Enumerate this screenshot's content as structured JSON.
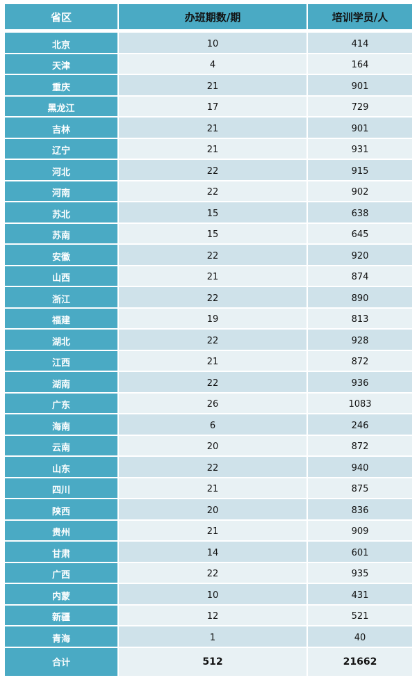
{
  "header": {
    "province": "省区",
    "sessions": "办班期数/期",
    "trainees": "培训学员/人"
  },
  "rows": [
    {
      "province": "北京",
      "sessions": "10",
      "trainees": "414"
    },
    {
      "province": "天津",
      "sessions": "4",
      "trainees": "164"
    },
    {
      "province": "重庆",
      "sessions": "21",
      "trainees": "901"
    },
    {
      "province": "黑龙江",
      "sessions": "17",
      "trainees": "729"
    },
    {
      "province": "吉林",
      "sessions": "21",
      "trainees": "901"
    },
    {
      "province": "辽宁",
      "sessions": "21",
      "trainees": "931"
    },
    {
      "province": "河北",
      "sessions": "22",
      "trainees": "915"
    },
    {
      "province": "河南",
      "sessions": "22",
      "trainees": "902"
    },
    {
      "province": "苏北",
      "sessions": "15",
      "trainees": "638"
    },
    {
      "province": "苏南",
      "sessions": "15",
      "trainees": "645"
    },
    {
      "province": "安徽",
      "sessions": "22",
      "trainees": "920"
    },
    {
      "province": "山西",
      "sessions": "21",
      "trainees": "874"
    },
    {
      "province": "浙江",
      "sessions": "22",
      "trainees": "890"
    },
    {
      "province": "福建",
      "sessions": "19",
      "trainees": "813"
    },
    {
      "province": "湖北",
      "sessions": "22",
      "trainees": "928"
    },
    {
      "province": "江西",
      "sessions": "21",
      "trainees": "872"
    },
    {
      "province": "湖南",
      "sessions": "22",
      "trainees": "936"
    },
    {
      "province": "广东",
      "sessions": "26",
      "trainees": "1083"
    },
    {
      "province": "海南",
      "sessions": "6",
      "trainees": "246"
    },
    {
      "province": "云南",
      "sessions": "20",
      "trainees": "872"
    },
    {
      "province": "山东",
      "sessions": "22",
      "trainees": "940"
    },
    {
      "province": "四川",
      "sessions": "21",
      "trainees": "875"
    },
    {
      "province": "陕西",
      "sessions": "20",
      "trainees": "836"
    },
    {
      "province": "贵州",
      "sessions": "21",
      "trainees": "909"
    },
    {
      "province": "甘肃",
      "sessions": "14",
      "trainees": "601"
    },
    {
      "province": "广西",
      "sessions": "22",
      "trainees": "935"
    },
    {
      "province": "内蒙",
      "sessions": "10",
      "trainees": "431"
    },
    {
      "province": "新疆",
      "sessions": "12",
      "trainees": "521"
    },
    {
      "province": "青海",
      "sessions": "1",
      "trainees": "40"
    }
  ],
  "total": {
    "province": "合计",
    "sessions": "512",
    "trainees": "21662"
  },
  "colors": {
    "header": "#4aaac4",
    "row_dark": "#cfe2ea",
    "row_light": "#e8f1f4"
  }
}
